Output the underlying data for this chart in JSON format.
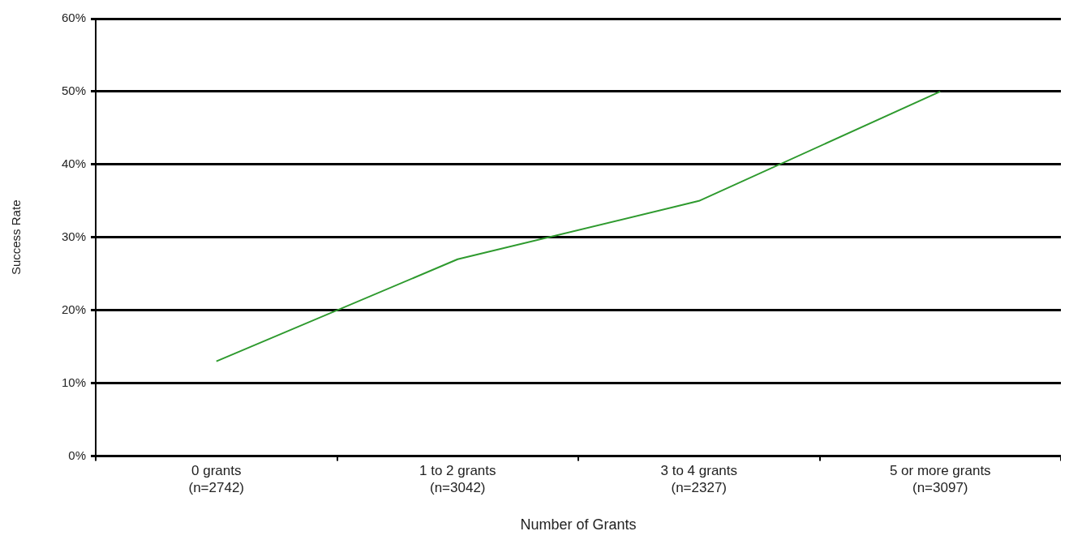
{
  "chart_data": {
    "type": "line",
    "categories": [
      "0 grants\n(n=2742)",
      "1 to 2 grants\n(n=3042)",
      "3 to 4 grants\n(n=2327)",
      "5 or more grants\n(n=3097)"
    ],
    "series": [
      {
        "color": "#2e9a2e",
        "values": [
          13,
          27,
          35,
          50
        ]
      }
    ],
    "ylim": [
      0,
      60
    ],
    "yticks": [
      {
        "value": 0,
        "label": "0%"
      },
      {
        "value": 10,
        "label": "10%"
      },
      {
        "value": 20,
        "label": "20%"
      },
      {
        "value": 30,
        "label": "30%"
      },
      {
        "value": 40,
        "label": "40%"
      },
      {
        "value": 50,
        "label": "50%"
      },
      {
        "value": 60,
        "label": "60%"
      }
    ],
    "xlabel": "Number of Grants",
    "ylabel": "Success Rate",
    "grid": "y",
    "legend": false,
    "marker": "none",
    "line_style": "solid"
  }
}
